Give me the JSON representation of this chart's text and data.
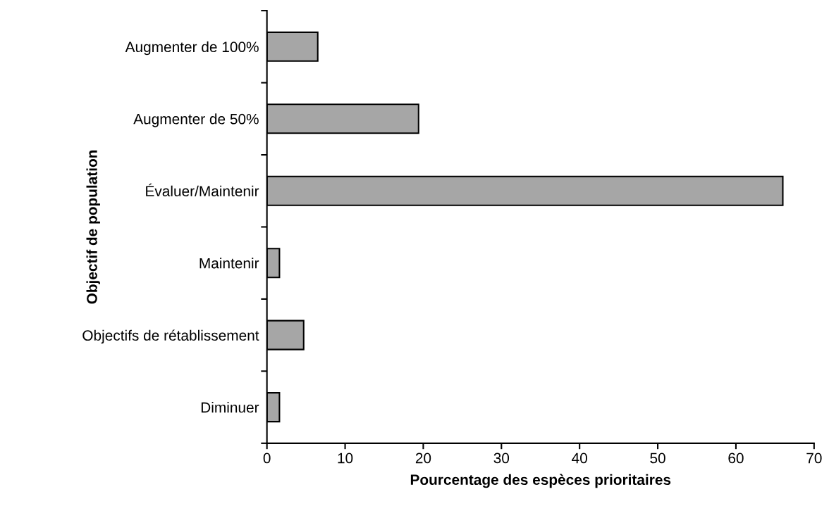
{
  "chart_data": {
    "type": "bar",
    "orientation": "horizontal",
    "categories": [
      "Augmenter de 100%",
      "Augmenter de 50%",
      "Évaluer/Maintenir",
      "Maintenir",
      "Objectifs de rétablissement",
      "Diminuer"
    ],
    "values": [
      6.5,
      19.4,
      66.0,
      1.6,
      4.7,
      1.6
    ],
    "color": "#a6a6a6",
    "xlabel": "Pourcentage des espèces prioritaires",
    "ylabel": "Objectif de population",
    "xlim": [
      0,
      70
    ],
    "xticks": [
      0,
      10,
      20,
      30,
      40,
      50,
      60,
      70
    ],
    "grid": false,
    "legend": false
  }
}
